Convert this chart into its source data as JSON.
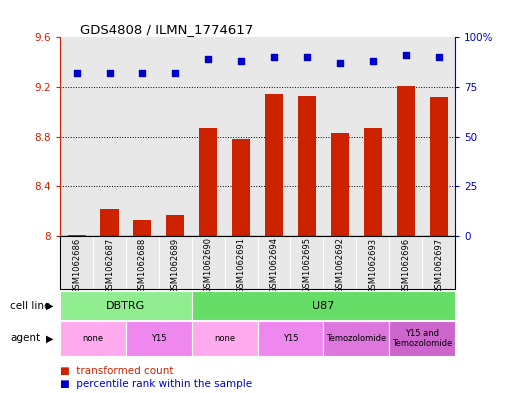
{
  "title": "GDS4808 / ILMN_1774617",
  "samples": [
    "GSM1062686",
    "GSM1062687",
    "GSM1062688",
    "GSM1062689",
    "GSM1062690",
    "GSM1062691",
    "GSM1062694",
    "GSM1062695",
    "GSM1062692",
    "GSM1062693",
    "GSM1062696",
    "GSM1062697"
  ],
  "red_values": [
    8.01,
    8.22,
    8.13,
    8.17,
    8.87,
    8.78,
    9.14,
    9.13,
    8.83,
    8.87,
    9.21,
    9.12
  ],
  "blue_values": [
    82,
    82,
    82,
    82,
    89,
    88,
    90,
    90,
    87,
    88,
    91,
    90
  ],
  "ylim_left": [
    8.0,
    9.6
  ],
  "ylim_right": [
    0,
    100
  ],
  "yticks_left": [
    8.0,
    8.4,
    8.8,
    9.2,
    9.6
  ],
  "yticks_right": [
    0,
    25,
    50,
    75,
    100
  ],
  "ytick_labels_left": [
    "8",
    "8.4",
    "8.8",
    "9.2",
    "9.6"
  ],
  "ytick_labels_right": [
    "0",
    "25",
    "50",
    "75",
    "100%"
  ],
  "cell_line_groups": [
    {
      "label": "DBTRG",
      "start": 0,
      "end": 3,
      "color": "#90EE90"
    },
    {
      "label": "U87",
      "start": 4,
      "end": 11,
      "color": "#66DD66"
    }
  ],
  "agent_groups": [
    {
      "label": "none",
      "start": 0,
      "end": 1,
      "color": "#FFAAEE"
    },
    {
      "label": "Y15",
      "start": 2,
      "end": 3,
      "color": "#EE88EE"
    },
    {
      "label": "none",
      "start": 4,
      "end": 5,
      "color": "#FFAAEE"
    },
    {
      "label": "Y15",
      "start": 6,
      "end": 7,
      "color": "#EE88EE"
    },
    {
      "label": "Temozolomide",
      "start": 8,
      "end": 9,
      "color": "#DD77DD"
    },
    {
      "label": "Y15 and\nTemozolomide",
      "start": 10,
      "end": 11,
      "color": "#CC66CC"
    }
  ],
  "bar_color": "#CC2200",
  "dot_color": "#0000CC",
  "bg_color": "#E8E8E8",
  "legend_red": "transformed count",
  "legend_blue": "percentile rank within the sample",
  "cell_line_label": "cell line",
  "agent_label": "agent"
}
